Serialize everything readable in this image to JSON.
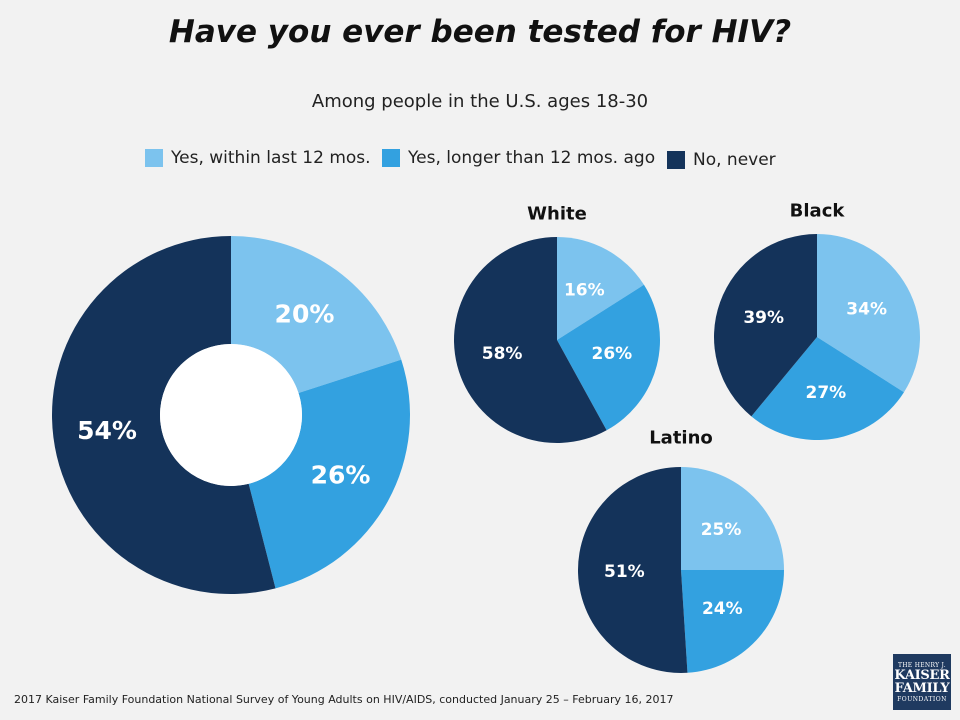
{
  "title": "Have you ever been tested for HIV?",
  "subtitle": "Among people in the U.S. ages 18-30",
  "colors": {
    "yes_12": "#7cc3ee",
    "yes_longer": "#33a1e0",
    "never": "#14335a",
    "label_light": "#ffffff"
  },
  "legend": [
    {
      "label": "Yes, within last 12 mos.",
      "color": "#7cc3ee"
    },
    {
      "label": "Yes, longer than 12 mos. ago",
      "color": "#33a1e0"
    },
    {
      "label": "No, never",
      "color": "#14335a"
    }
  ],
  "chart_data": [
    {
      "type": "pie",
      "variant": "donut",
      "title": "",
      "categories": [
        "Yes, within last 12 mos.",
        "Yes, longer than 12 mos. ago",
        "No, never"
      ],
      "values": [
        20,
        26,
        54
      ],
      "labels": [
        "20%",
        "26%",
        "54%"
      ]
    },
    {
      "type": "pie",
      "title": "White",
      "categories": [
        "Yes, within last 12 mos.",
        "Yes, longer than 12 mos. ago",
        "No, never"
      ],
      "values": [
        16,
        26,
        58
      ],
      "labels": [
        "16%",
        "26%",
        "58%"
      ]
    },
    {
      "type": "pie",
      "title": "Black",
      "categories": [
        "Yes, within last 12 mos.",
        "Yes, longer than 12 mos. ago",
        "No, never"
      ],
      "values": [
        34,
        27,
        39
      ],
      "labels": [
        "34%",
        "27%",
        "39%"
      ]
    },
    {
      "type": "pie",
      "title": "Latino",
      "categories": [
        "Yes, within last 12 mos.",
        "Yes, longer than 12 mos. ago",
        "No, never"
      ],
      "values": [
        25,
        24,
        51
      ],
      "labels": [
        "25%",
        "24%",
        "51%"
      ]
    }
  ],
  "footer": "2017 Kaiser Family Foundation National Survey of Young Adults on HIV/AIDS, conducted January 25 – February 16, 2017",
  "logo": {
    "line1": "THE HENRY J.",
    "line2": "KAISER",
    "line3": "FAMILY",
    "line4": "FOUNDATION"
  }
}
